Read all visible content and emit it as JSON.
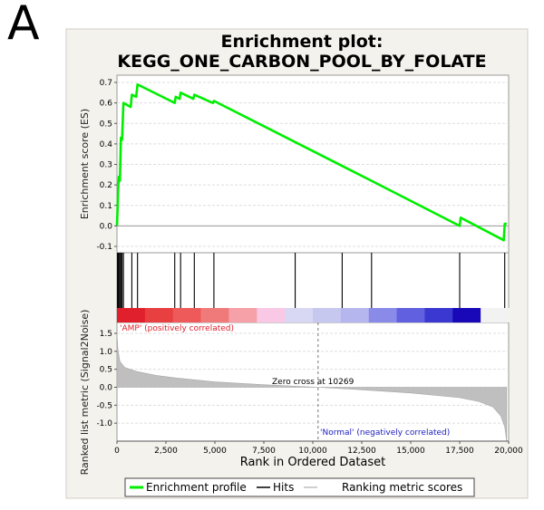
{
  "panel_label": "A",
  "chart_data": {
    "type": "line",
    "title_line1": "Enrichment plot:",
    "title_line2": "KEGG_ONE_CARBON_POOL_BY_FOLATE",
    "es": {
      "ylabel": "Enrichment score (ES)",
      "ylim": [
        -0.1,
        0.7
      ],
      "yticks": [
        "0.7",
        "0.6",
        "0.5",
        "0.4",
        "0.3",
        "0.2",
        "0.1",
        "0.0",
        "-0.1"
      ],
      "points": [
        [
          0,
          0.0
        ],
        [
          30,
          0.08
        ],
        [
          60,
          0.18
        ],
        [
          100,
          0.24
        ],
        [
          150,
          0.22
        ],
        [
          200,
          0.43
        ],
        [
          260,
          0.42
        ],
        [
          330,
          0.6
        ],
        [
          700,
          0.58
        ],
        [
          760,
          0.64
        ],
        [
          980,
          0.63
        ],
        [
          1050,
          0.69
        ],
        [
          2950,
          0.6
        ],
        [
          3000,
          0.63
        ],
        [
          3200,
          0.62
        ],
        [
          3250,
          0.65
        ],
        [
          3900,
          0.62
        ],
        [
          3950,
          0.64
        ],
        [
          4900,
          0.6
        ],
        [
          4950,
          0.61
        ],
        [
          13000,
          0.22
        ],
        [
          17500,
          0.0
        ],
        [
          17550,
          0.04
        ],
        [
          19750,
          -0.07
        ],
        [
          19800,
          0.01
        ],
        [
          19900,
          0.01
        ]
      ]
    },
    "hits": [
      30,
      60,
      100,
      150,
      200,
      260,
      330,
      760,
      1050,
      2950,
      3250,
      3950,
      4950,
      9100,
      11500,
      13000,
      17500,
      19800
    ],
    "color_bar": [
      "#e0202c",
      "#e84040",
      "#ee5a5a",
      "#f07a7a",
      "#f6a0a8",
      "#f9c8e4",
      "#d8d8f4",
      "#c6c8f0",
      "#b6b6ee",
      "#8a8ae8",
      "#6060e0",
      "#3a38d0",
      "#1808b8",
      "#f2f2f2"
    ],
    "metric": {
      "ylabel": "Ranked list metric (Signal2Noise)",
      "ylim": [
        -1.5,
        1.5
      ],
      "yticks": [
        "1.5",
        "1.0",
        "0.5",
        "0.0",
        "-0.5",
        "-1.0"
      ],
      "profile": [
        [
          0,
          1.5
        ],
        [
          50,
          1.05
        ],
        [
          150,
          0.72
        ],
        [
          400,
          0.55
        ],
        [
          1000,
          0.44
        ],
        [
          2000,
          0.33
        ],
        [
          3000,
          0.26
        ],
        [
          5000,
          0.15
        ],
        [
          7500,
          0.07
        ],
        [
          10269,
          0.0
        ],
        [
          12500,
          -0.07
        ],
        [
          15000,
          -0.16
        ],
        [
          17500,
          -0.29
        ],
        [
          18500,
          -0.4
        ],
        [
          19200,
          -0.55
        ],
        [
          19600,
          -0.8
        ],
        [
          19800,
          -1.1
        ],
        [
          19900,
          -1.5
        ]
      ],
      "zero_cross_label": "Zero cross at 10269",
      "zero_cross_rank": 10269,
      "pos_label": "'AMP' (positively correlated)",
      "neg_label": "'Normal' (negatively correlated)"
    },
    "x": {
      "label": "Rank in Ordered Dataset",
      "lim": [
        0,
        20000
      ],
      "ticks": [
        "0",
        "2,500",
        "5,000",
        "7,500",
        "10,000",
        "12,500",
        "15,000",
        "17,500",
        "20,000"
      ]
    },
    "legend": {
      "enrichment": "Enrichment profile",
      "hits": "Hits",
      "ranking": "Ranking metric scores"
    },
    "colors": {
      "enrichment": "#00ee00",
      "hits": "#000000",
      "ranking": "#bfbfbf",
      "pos": "#e0202c",
      "neg": "#2020c0",
      "panel_bg": "#f4f2ec"
    }
  }
}
